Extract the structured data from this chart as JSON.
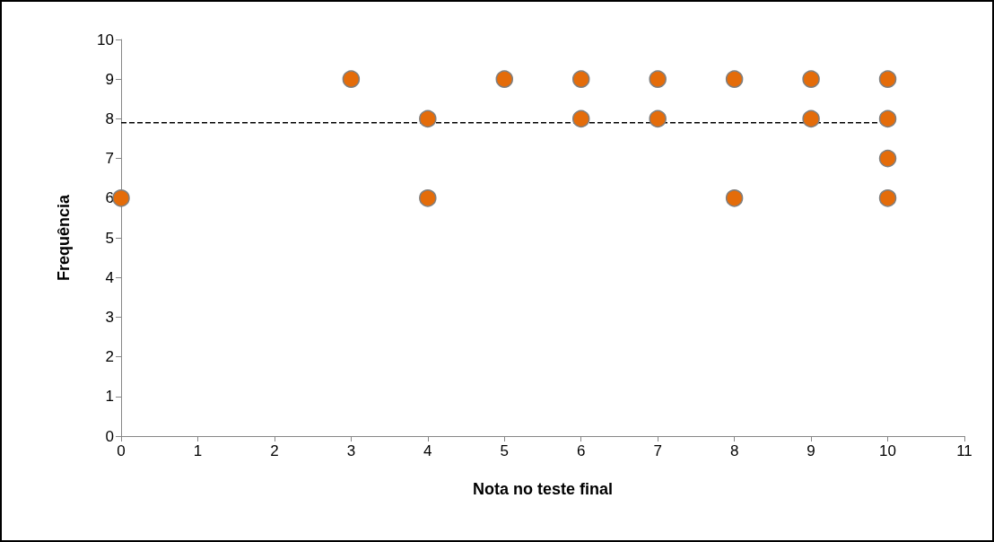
{
  "chart_data": {
    "type": "scatter",
    "xlabel": "Nota no teste final",
    "ylabel": "Frequência",
    "xlim": [
      0,
      11
    ],
    "xticks": [
      0,
      1,
      2,
      3,
      4,
      5,
      6,
      7,
      8,
      9,
      10,
      11
    ],
    "ylim": [
      0,
      10
    ],
    "yticks": [
      0,
      1,
      2,
      3,
      4,
      5,
      6,
      7,
      8,
      9,
      10
    ],
    "grid": false,
    "marker": "circle",
    "series": [
      {
        "color": "#e46c0a",
        "x": [
          0,
          3,
          4,
          4,
          5,
          6,
          6,
          7,
          7,
          8,
          8,
          9,
          9,
          10,
          10,
          10,
          10
        ],
        "values": [
          6,
          9,
          8,
          6,
          9,
          9,
          8,
          9,
          8,
          9,
          6,
          9,
          8,
          9,
          8,
          7,
          6
        ]
      },
      {
        "type": "line",
        "color": "#000000",
        "line_style": "dashed",
        "marker": "none",
        "x": [
          0,
          10
        ],
        "values": [
          7.9,
          7.9
        ]
      }
    ]
  }
}
